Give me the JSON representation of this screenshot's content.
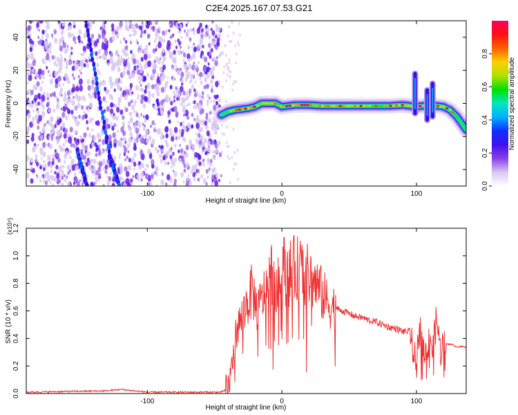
{
  "title": "C2E4.2025.167.07.53.G21",
  "chart_data": [
    {
      "type": "heatmap",
      "xlabel": "Height of straight line (km)",
      "ylabel": "Frequency (Hz)",
      "xlim": [
        -190,
        137
      ],
      "ylim": [
        -50,
        50
      ],
      "x_ticks": [
        -100,
        0,
        100
      ],
      "y_ticks": [
        -40,
        -20,
        0,
        20,
        40
      ],
      "colorbar": {
        "label": "Normalized spectral amplitude",
        "range": [
          0,
          1
        ],
        "ticks": [
          0.0,
          0.2,
          0.4,
          0.6,
          0.8
        ],
        "colors": [
          "#ffffff",
          "#d8c8f0",
          "#8a40e8",
          "#4010f0",
          "#1030ff",
          "#00b0ff",
          "#00e8c0",
          "#00e000",
          "#b0e000",
          "#ffd000",
          "#ff6000",
          "#ff1010",
          "#ff0060"
        ]
      },
      "noise_region_x": [
        -190,
        -45
      ],
      "streak_tracks": [
        {
          "x": [
            -146,
            -128
          ],
          "y": [
            50,
            -32
          ]
        },
        {
          "x": [
            -152,
            -145
          ],
          "y": [
            -28,
            -50
          ]
        },
        {
          "x": [
            -128,
            -121
          ],
          "y": [
            -32,
            -50
          ]
        }
      ],
      "ridge": {
        "x": [
          -45,
          -40,
          -35,
          -30,
          -25,
          -20,
          -15,
          -10,
          -5,
          0,
          10,
          20,
          30,
          40,
          50,
          60,
          70,
          80,
          90,
          95,
          100,
          105,
          110,
          115,
          120,
          125,
          130,
          137
        ],
        "y": [
          -7,
          -5,
          -4,
          -3.5,
          -3,
          -2,
          0,
          0,
          0,
          -2,
          -1,
          -1,
          -1.5,
          -1.5,
          -1.5,
          -1.5,
          -1.5,
          -1.5,
          -1,
          -1.5,
          -2,
          -1.5,
          -1,
          -1.5,
          -2,
          -4,
          -8,
          -16
        ]
      },
      "spikes": [
        {
          "x": 99,
          "y": [
            -6,
            18
          ]
        },
        {
          "x": 108,
          "y": [
            -10,
            8
          ]
        },
        {
          "x": 112,
          "y": [
            -8,
            12
          ]
        }
      ]
    },
    {
      "type": "line",
      "xlabel": "Height of straight line (km)",
      "ylabel": "SNR (10 * v/v)",
      "y_multiplier": "(x10⁴)",
      "xlim": [
        -190,
        137
      ],
      "ylim": [
        0,
        1.2
      ],
      "x_ticks": [
        -100,
        0,
        100
      ],
      "y_ticks": [
        0.0,
        0.2,
        0.4,
        0.6,
        0.8,
        1.0,
        1.2
      ],
      "series": [
        {
          "color": "#ee3030",
          "x": [
            -190,
            -160,
            -130,
            -120,
            -100,
            -60,
            -45,
            -40,
            -37,
            -34,
            -30,
            -26,
            -22,
            -18,
            -14,
            -10,
            -7,
            -4,
            0,
            4,
            8,
            12,
            16,
            20,
            25,
            30,
            35,
            40,
            45,
            50,
            55,
            60,
            65,
            70,
            75,
            80,
            85,
            90,
            95,
            98,
            100,
            102,
            105,
            108,
            110,
            112,
            115,
            118,
            120,
            122,
            125,
            130,
            137
          ],
          "y": [
            0.01,
            0.015,
            0.02,
            0.03,
            0.01,
            0.01,
            0.01,
            0.04,
            0.2,
            0.45,
            0.55,
            0.65,
            0.75,
            0.6,
            0.7,
            0.8,
            0.9,
            0.7,
            0.95,
            0.85,
            0.9,
            0.9,
            0.88,
            0.85,
            0.8,
            0.72,
            0.65,
            0.62,
            0.6,
            0.58,
            0.56,
            0.55,
            0.53,
            0.52,
            0.5,
            0.48,
            0.47,
            0.45,
            0.45,
            0.3,
            0.2,
            0.5,
            0.35,
            0.25,
            0.45,
            0.3,
            0.55,
            0.3,
            0.38,
            0.36,
            0.36,
            0.34,
            0.34
          ]
        }
      ]
    }
  ]
}
